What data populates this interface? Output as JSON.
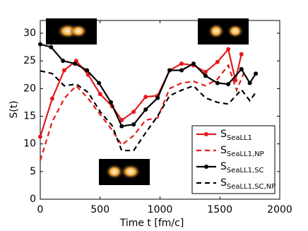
{
  "chart_data": {
    "type": "line",
    "xlabel": "Time t [fm/c]",
    "ylabel": "S(t)",
    "xlim": [
      0,
      2000
    ],
    "xticks": [
      0,
      500,
      1000,
      1500,
      2000
    ],
    "ylim": [
      0,
      32.3
    ],
    "yticks": [
      0,
      5,
      10,
      15,
      20,
      25,
      30
    ],
    "legend": "lower right",
    "series": [
      {
        "name": "S",
        "subscript": "SeaLL1",
        "color": "#e41a1c",
        "dash": false,
        "marker": true,
        "x": [
          0,
          100,
          200,
          300,
          400,
          500,
          600,
          680,
          780,
          880,
          980,
          1080,
          1180,
          1280,
          1380,
          1480,
          1570,
          1630,
          1680
        ],
        "values": [
          11.3,
          18.2,
          23.3,
          25,
          22.5,
          19,
          16.8,
          14.3,
          15.8,
          18.5,
          18.7,
          23.3,
          24.5,
          24.2,
          23,
          24.8,
          27.1,
          21.5,
          26.2
        ]
      },
      {
        "name": "S",
        "subscript": "SeaLL1,NP",
        "color": "#e41a1c",
        "dash": true,
        "marker": false,
        "x": [
          0,
          100,
          200,
          300,
          400,
          500,
          600,
          680,
          780,
          880,
          980,
          1080,
          1180,
          1280,
          1380,
          1480,
          1570,
          1640,
          1700
        ],
        "values": [
          7,
          14,
          18.2,
          20.5,
          18.2,
          15.3,
          12.5,
          9.8,
          11.5,
          14.3,
          14.7,
          20,
          21,
          21.3,
          20.5,
          21.7,
          24.2,
          19.7,
          22.8
        ]
      },
      {
        "name": "S",
        "subscript": "SeaLL1,SC",
        "color": "#000000",
        "dash": false,
        "marker": true,
        "x": [
          0,
          90,
          190,
          290,
          390,
          490,
          590,
          680,
          780,
          880,
          980,
          1080,
          1180,
          1280,
          1380,
          1480,
          1570,
          1680,
          1750,
          1800
        ],
        "values": [
          28,
          27.5,
          25,
          24.5,
          23.3,
          21,
          17.5,
          13.2,
          13.5,
          16.2,
          18.3,
          23.3,
          23.3,
          24.5,
          22.3,
          21,
          20.8,
          23.5,
          21,
          22.7
        ]
      },
      {
        "name": "S",
        "subscript": "SeaLL1,SC,NP",
        "color": "#000000",
        "dash": true,
        "marker": false,
        "x": [
          0,
          100,
          200,
          300,
          400,
          500,
          600,
          680,
          780,
          880,
          980,
          1080,
          1180,
          1280,
          1380,
          1480,
          1570,
          1680,
          1750,
          1800
        ],
        "values": [
          23.2,
          22.7,
          20.5,
          20.8,
          19.3,
          15.8,
          13.3,
          8.8,
          8.8,
          12,
          15,
          18.7,
          19.7,
          20.5,
          18.3,
          17.5,
          17.2,
          19.8,
          17.8,
          19.3
        ]
      }
    ]
  }
}
